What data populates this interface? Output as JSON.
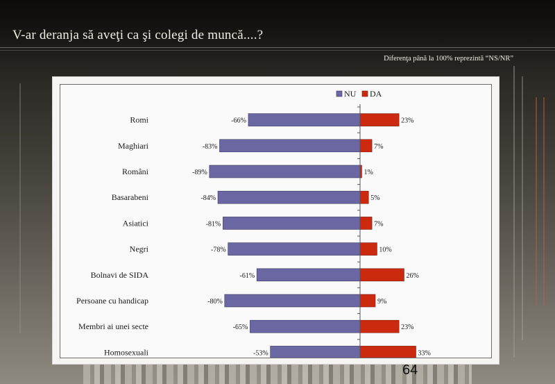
{
  "slide": {
    "title": "V-ar deranja să aveţi ca şi colegi de muncă....?",
    "note": "Diferenţa până la 100% reprezintă  “NS/NR”",
    "page_number": "64"
  },
  "colors": {
    "nu": "#6a67a3",
    "da": "#cc2a0e",
    "bar_border": "#3b3960",
    "background": "#2b2824"
  },
  "chart_data": {
    "type": "bar",
    "orientation": "horizontal",
    "categories": [
      "Romi",
      "Maghiari",
      "Români",
      "Basarabeni",
      "Asiatici",
      "Negri",
      "Bolnavi de SIDA",
      "Persoane cu handicap",
      "Membri ai unei secte",
      "Homosexuali"
    ],
    "series": [
      {
        "name": "NU",
        "color": "#6a67a3",
        "values": [
          -66,
          -83,
          -89,
          -84,
          -81,
          -78,
          -61,
          -80,
          -65,
          -53
        ],
        "labels": [
          "-66%",
          "-83%",
          "-89%",
          "-84%",
          "-81%",
          "-78%",
          "-61%",
          "-80%",
          "-65%",
          "-53%"
        ]
      },
      {
        "name": "DA",
        "color": "#cc2a0e",
        "values": [
          23,
          7,
          1,
          5,
          7,
          10,
          26,
          9,
          23,
          33
        ],
        "labels": [
          "23%",
          "7%",
          "1%",
          "5%",
          "7%",
          "10%",
          "26%",
          "9%",
          "23%",
          "33%"
        ]
      }
    ],
    "legend_position": "top",
    "xlim": [
      -100,
      100
    ],
    "grid": false
  }
}
